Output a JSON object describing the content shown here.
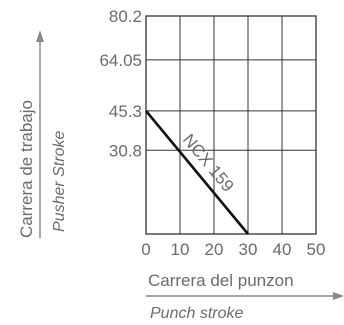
{
  "colors": {
    "axis_text": "#6b6b6b",
    "grid": "#333333",
    "line": "#111111",
    "arrow": "#888888"
  },
  "chart_data": {
    "type": "line",
    "grid": true,
    "xlim": [
      0,
      50
    ],
    "ylim": [
      0,
      80.2
    ],
    "x_ticks": [
      0,
      10,
      20,
      30,
      40,
      50
    ],
    "y_ticks": [
      30.8,
      45.3,
      64.05,
      80.2
    ],
    "x_tick_labels": [
      "0",
      "10",
      "20",
      "30",
      "40",
      "50"
    ],
    "y_tick_labels": [
      "30.8",
      "45.3",
      "64.05",
      "80.2"
    ],
    "xlabel": "Carrera del punzon",
    "xlabel_secondary": "Punch stroke",
    "ylabel": "Carrera de trabajo",
    "ylabel_secondary": "Pusher Stroke",
    "series": [
      {
        "name": "NCX 159",
        "x": [
          0,
          30
        ],
        "y": [
          45.3,
          0
        ]
      }
    ]
  }
}
